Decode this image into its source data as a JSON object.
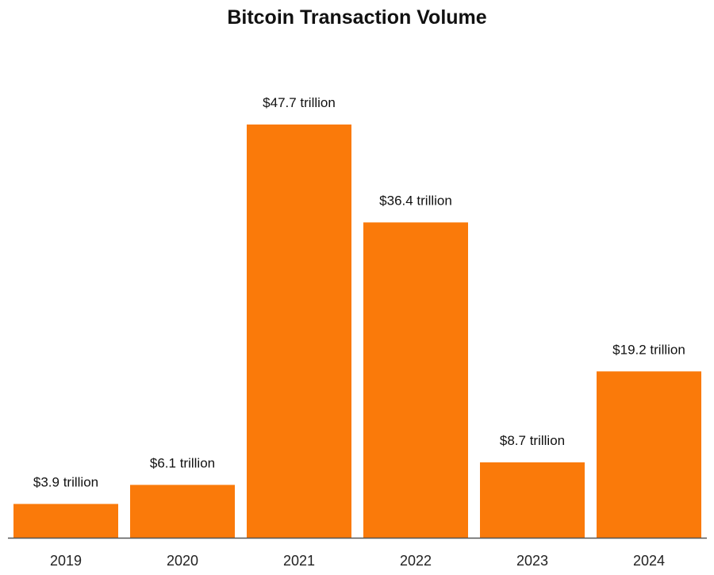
{
  "chart_data": {
    "type": "bar",
    "title": "Bitcoin Transaction Volume",
    "xlabel": "",
    "ylabel": "",
    "categories": [
      "2019",
      "2020",
      "2021",
      "2022",
      "2023",
      "2024"
    ],
    "values": [
      3.9,
      6.1,
      47.7,
      36.4,
      8.7,
      19.2
    ],
    "data_labels": [
      "$3.9 trillion",
      "$6.1 trillion",
      "$47.7 trillion",
      "$36.4 trillion",
      "$8.7 trillion",
      "$19.2 trillion"
    ],
    "unit": "trillion USD",
    "ylim": [
      0,
      47.7
    ],
    "grid": false,
    "y_axis_visible": false,
    "bar_color": "#FA7A0A",
    "axis_color": "#555555"
  }
}
